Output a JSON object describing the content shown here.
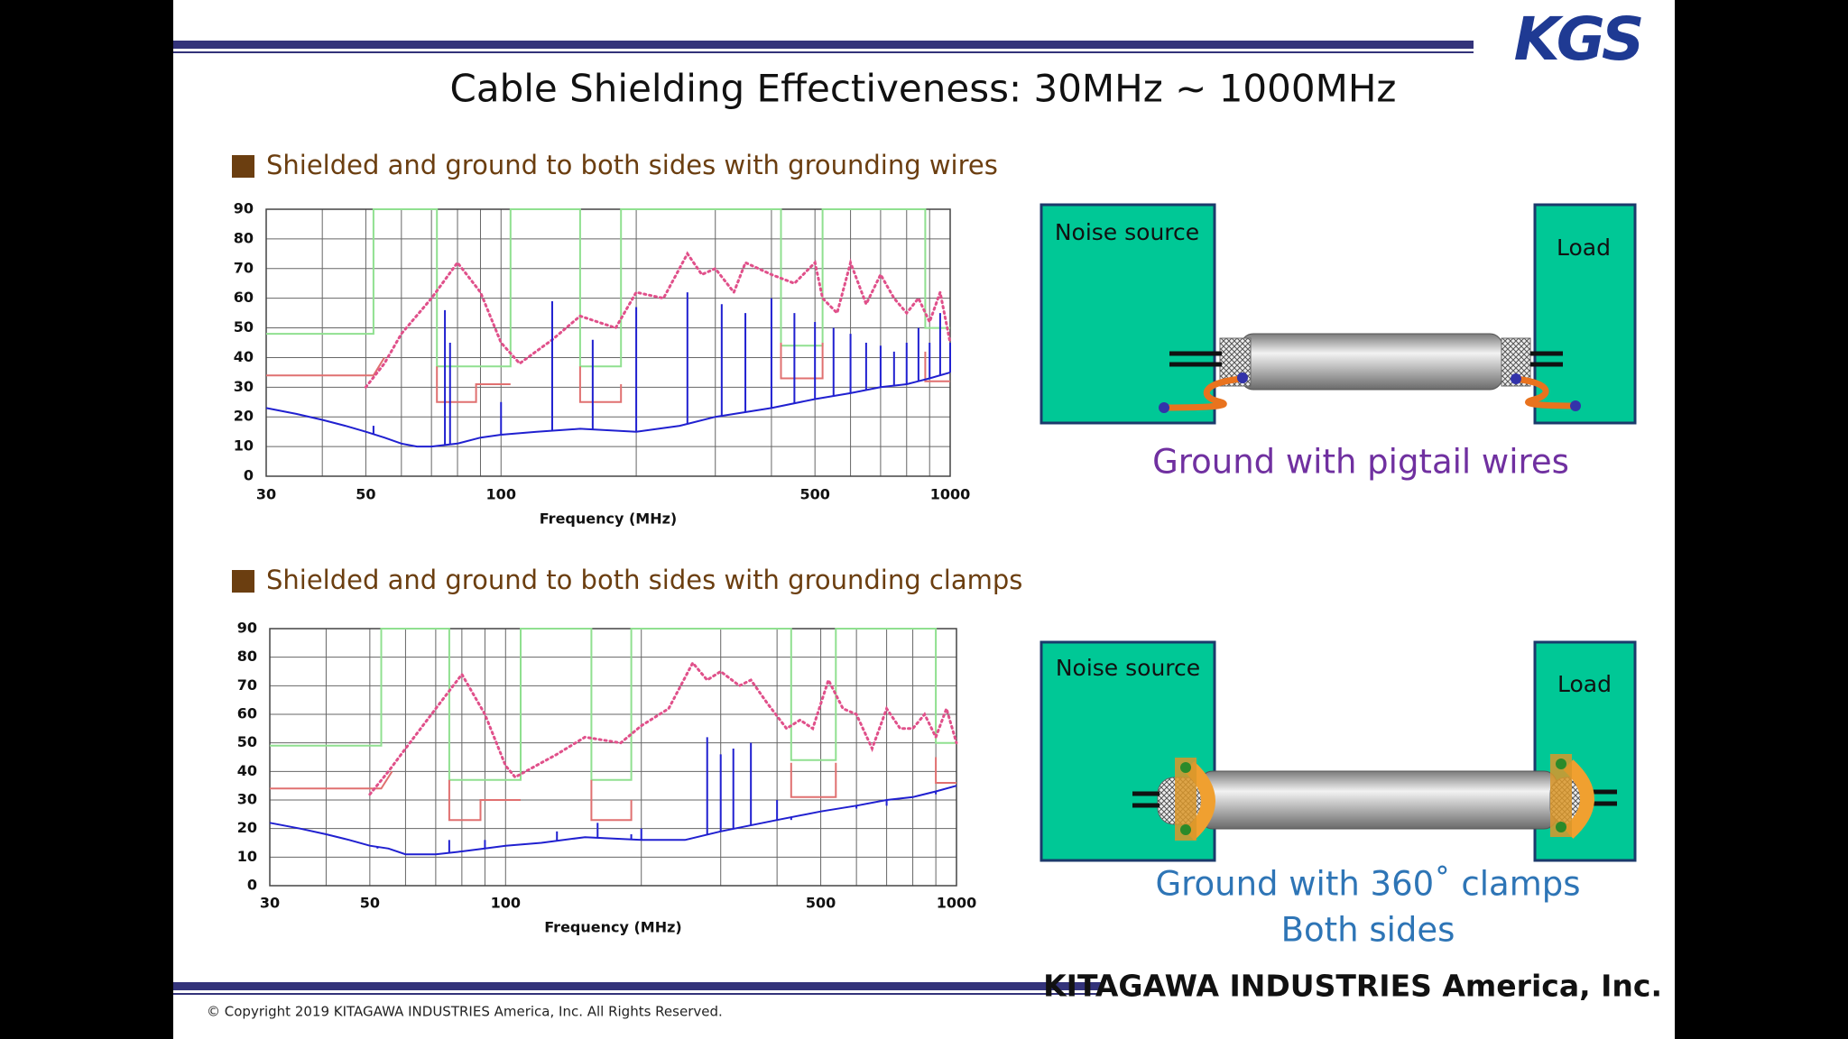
{
  "header": {
    "title": "Cable Shielding Effectiveness: 30MHz ~ 1000MHz",
    "logo": "KGS"
  },
  "sections": [
    {
      "heading": "Shielded and ground to both sides with grounding wires",
      "diagram": {
        "source_label": "Noise source",
        "load_label": "Load",
        "caption": [
          "Ground with pigtail wires"
        ]
      }
    },
    {
      "heading": "Shielded and ground to both sides with grounding clamps",
      "diagram": {
        "source_label": "Noise source",
        "load_label": "Load",
        "caption": [
          "Ground with 360˚ clamps",
          "Both sides"
        ]
      }
    }
  ],
  "chart_data": [
    {
      "type": "line",
      "x_label": "Frequency (MHz)",
      "xscale": "log",
      "xlim": [
        30,
        1000
      ],
      "ylim": [
        0,
        90
      ],
      "xticks": [
        30,
        50,
        100,
        500,
        1000
      ],
      "x_minor_ticks": [
        40,
        60,
        70,
        80,
        90,
        200,
        300,
        400,
        600,
        700,
        800,
        900
      ],
      "yticks": [
        0,
        10,
        20,
        30,
        40,
        50,
        60,
        70,
        80,
        90
      ],
      "grid": true,
      "series": [
        {
          "color": "#90e090",
          "style": "solid",
          "x": [
            30,
            52,
            52,
            72,
            72,
            105,
            105,
            150,
            150,
            185,
            185,
            420,
            420,
            520,
            520,
            880,
            880,
            1000
          ],
          "values": [
            48,
            48,
            90,
            90,
            37,
            37,
            90,
            90,
            37,
            37,
            90,
            90,
            44,
            44,
            90,
            90,
            50,
            50
          ]
        },
        {
          "color": "#e07070",
          "style": "solid",
          "x": [
            30,
            52,
            55
          ],
          "values": [
            34,
            34,
            40
          ]
        },
        {
          "color": "#e07070",
          "style": "solid",
          "x": [
            72,
            72,
            88,
            88,
            105
          ],
          "values": [
            37,
            25,
            25,
            31,
            31
          ]
        },
        {
          "color": "#e07070",
          "style": "solid",
          "x": [
            150,
            150,
            185,
            185
          ],
          "values": [
            37,
            25,
            25,
            31
          ]
        },
        {
          "color": "#e07070",
          "style": "solid",
          "x": [
            420,
            420,
            520,
            520
          ],
          "values": [
            45,
            33,
            33,
            45
          ]
        },
        {
          "color": "#e07070",
          "style": "solid",
          "x": [
            880,
            880,
            1000
          ],
          "values": [
            42,
            32,
            32
          ]
        },
        {
          "color": "#e0508a",
          "style": "dotted",
          "x": [
            50,
            55,
            60,
            70,
            80,
            90,
            100,
            110,
            130,
            150,
            180,
            200,
            230,
            260,
            280,
            300,
            330,
            350,
            400,
            450,
            500,
            520,
            560,
            600,
            650,
            700,
            750,
            800,
            850,
            900,
            950,
            1000
          ],
          "values": [
            30,
            38,
            48,
            60,
            72,
            62,
            45,
            38,
            46,
            54,
            50,
            62,
            60,
            75,
            68,
            70,
            62,
            72,
            68,
            65,
            72,
            60,
            55,
            72,
            58,
            68,
            60,
            55,
            60,
            52,
            62,
            45
          ]
        },
        {
          "color": "#2020d0",
          "style": "solid",
          "x": [
            30,
            35,
            40,
            45,
            50,
            55,
            60,
            65,
            70,
            80,
            90,
            100,
            120,
            150,
            200,
            250,
            300,
            400,
            500,
            600,
            700,
            800,
            900,
            1000
          ],
          "values": [
            23,
            21,
            19,
            17,
            15,
            13,
            11,
            10,
            10,
            11,
            13,
            14,
            15,
            16,
            15,
            17,
            20,
            23,
            26,
            28,
            30,
            31,
            33,
            35
          ]
        },
        {
          "color": "#2020d0",
          "style": "spikes",
          "x": [
            52,
            75,
            77,
            100,
            130,
            160,
            200,
            260,
            310,
            350,
            400,
            450,
            500,
            550,
            600,
            650,
            700,
            750,
            800,
            850,
            900,
            950,
            1000
          ],
          "values": [
            17,
            56,
            45,
            25,
            59,
            46,
            57,
            62,
            58,
            55,
            60,
            55,
            52,
            50,
            48,
            45,
            44,
            42,
            45,
            50,
            45,
            55,
            45
          ]
        }
      ]
    },
    {
      "type": "line",
      "x_label": "Frequency (MHz)",
      "xscale": "log",
      "xlim": [
        30,
        1000
      ],
      "ylim": [
        0,
        90
      ],
      "xticks": [
        30,
        50,
        100,
        500,
        1000
      ],
      "x_minor_ticks": [
        40,
        60,
        70,
        80,
        90,
        200,
        300,
        400,
        600,
        700,
        800,
        900
      ],
      "yticks": [
        0,
        10,
        20,
        30,
        40,
        50,
        60,
        70,
        80,
        90
      ],
      "grid": true,
      "series": [
        {
          "color": "#90e090",
          "style": "solid",
          "x": [
            30,
            53,
            53,
            75,
            75,
            108,
            108,
            155,
            155,
            190,
            190,
            430,
            430,
            540,
            540,
            900,
            900,
            1000
          ],
          "values": [
            49,
            49,
            90,
            90,
            37,
            37,
            90,
            90,
            37,
            37,
            90,
            90,
            44,
            44,
            90,
            90,
            50,
            50
          ]
        },
        {
          "color": "#e07070",
          "style": "solid",
          "x": [
            30,
            53,
            56
          ],
          "values": [
            34,
            34,
            40
          ]
        },
        {
          "color": "#e07070",
          "style": "solid",
          "x": [
            75,
            75,
            88,
            88,
            108
          ],
          "values": [
            37,
            23,
            23,
            30,
            30
          ]
        },
        {
          "color": "#e07070",
          "style": "solid",
          "x": [
            155,
            155,
            190,
            190
          ],
          "values": [
            37,
            23,
            23,
            30
          ]
        },
        {
          "color": "#e07070",
          "style": "solid",
          "x": [
            430,
            430,
            540,
            540
          ],
          "values": [
            43,
            31,
            31,
            43
          ]
        },
        {
          "color": "#e07070",
          "style": "solid",
          "x": [
            900,
            900,
            1000
          ],
          "values": [
            45,
            36,
            36
          ]
        },
        {
          "color": "#e0508a",
          "style": "dotted",
          "x": [
            50,
            55,
            60,
            70,
            80,
            90,
            100,
            105,
            130,
            150,
            180,
            200,
            230,
            260,
            280,
            300,
            330,
            350,
            380,
            420,
            450,
            480,
            520,
            560,
            600,
            650,
            700,
            750,
            800,
            850,
            900,
            950,
            1000
          ],
          "values": [
            32,
            40,
            48,
            62,
            74,
            60,
            42,
            38,
            46,
            52,
            50,
            56,
            62,
            78,
            72,
            75,
            70,
            72,
            64,
            55,
            58,
            55,
            72,
            62,
            60,
            48,
            62,
            55,
            55,
            60,
            52,
            62,
            50
          ]
        },
        {
          "color": "#2020d0",
          "style": "solid",
          "x": [
            30,
            35,
            40,
            45,
            50,
            55,
            60,
            65,
            70,
            80,
            90,
            100,
            120,
            150,
            200,
            250,
            300,
            400,
            500,
            600,
            700,
            800,
            900,
            1000
          ],
          "values": [
            22,
            20,
            18,
            16,
            14,
            13,
            11,
            11,
            11,
            12,
            13,
            14,
            15,
            17,
            16,
            16,
            19,
            23,
            26,
            28,
            30,
            31,
            33,
            35
          ]
        },
        {
          "color": "#2020d0",
          "style": "spikes",
          "x": [
            52,
            75,
            90,
            130,
            160,
            190,
            200,
            280,
            300,
            320,
            350,
            400,
            430,
            600,
            700,
            900
          ],
          "values": [
            13,
            16,
            16,
            19,
            22,
            18,
            20,
            52,
            46,
            48,
            50,
            30,
            23,
            27,
            28,
            32
          ]
        }
      ]
    }
  ],
  "footer": {
    "company": "KITAGAWA INDUSTRIES America, Inc.",
    "copyright": "© Copyright 2019 KITAGAWA INDUSTRIES America, Inc. All Rights Reserved."
  }
}
